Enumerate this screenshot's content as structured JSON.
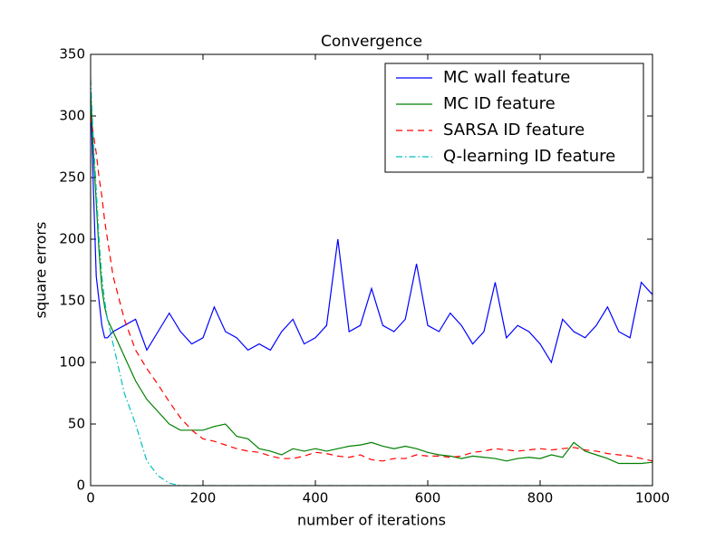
{
  "chart_data": {
    "type": "line",
    "title": "Convergence",
    "x_label": "number of iterations",
    "y_label": "square errors",
    "x": [
      0,
      5,
      10,
      15,
      20,
      25,
      30,
      40,
      60,
      80,
      100,
      120,
      140,
      160,
      180,
      200,
      220,
      240,
      260,
      280,
      300,
      320,
      340,
      360,
      380,
      400,
      420,
      440,
      460,
      480,
      500,
      520,
      540,
      560,
      580,
      600,
      620,
      640,
      660,
      680,
      700,
      720,
      740,
      760,
      780,
      800,
      820,
      840,
      860,
      880,
      900,
      920,
      940,
      960,
      980,
      1000
    ],
    "series": [
      {
        "name": "MC wall feature",
        "color": "#0000ff",
        "linestyle": "solid",
        "values": [
          320,
          240,
          170,
          150,
          130,
          120,
          120,
          125,
          130,
          135,
          110,
          125,
          140,
          125,
          115,
          120,
          145,
          125,
          120,
          110,
          115,
          110,
          125,
          135,
          115,
          120,
          130,
          200,
          125,
          130,
          160,
          130,
          125,
          135,
          180,
          130,
          125,
          140,
          130,
          115,
          125,
          165,
          120,
          130,
          125,
          115,
          100,
          135,
          125,
          120,
          130,
          145,
          125,
          120,
          165,
          155
        ]
      },
      {
        "name": "MC ID feature",
        "color": "#008000",
        "linestyle": "solid",
        "values": [
          320,
          270,
          230,
          190,
          160,
          145,
          135,
          125,
          105,
          85,
          70,
          60,
          50,
          45,
          45,
          45,
          48,
          50,
          40,
          38,
          30,
          28,
          25,
          30,
          28,
          30,
          28,
          30,
          32,
          33,
          35,
          32,
          30,
          32,
          30,
          27,
          25,
          24,
          22,
          24,
          23,
          22,
          20,
          22,
          23,
          22,
          25,
          23,
          35,
          28,
          25,
          22,
          18,
          18,
          18,
          19
        ]
      },
      {
        "name": "SARSA ID feature",
        "color": "#ff0000",
        "linestyle": "dashed",
        "values": [
          300,
          285,
          270,
          250,
          235,
          215,
          200,
          170,
          135,
          110,
          95,
          82,
          68,
          55,
          45,
          38,
          36,
          33,
          30,
          28,
          27,
          24,
          22,
          22,
          24,
          27,
          26,
          24,
          23,
          25,
          21,
          20,
          22,
          22,
          25,
          24,
          24,
          23,
          24,
          27,
          28,
          30,
          29,
          28,
          29,
          30,
          29,
          30,
          31,
          29,
          28,
          26,
          25,
          24,
          22,
          20
        ]
      },
      {
        "name": "Q-learning ID feature",
        "color": "#00bfbf",
        "linestyle": "dashdot",
        "values": [
          330,
          280,
          240,
          200,
          170,
          150,
          135,
          115,
          75,
          50,
          20,
          8,
          2,
          0,
          0,
          0,
          0,
          0,
          0,
          0,
          0,
          0,
          0,
          0,
          0,
          0,
          0,
          0,
          0,
          0,
          0,
          0,
          0,
          0,
          0,
          0,
          0,
          0,
          0,
          0,
          0,
          0,
          0,
          0,
          0,
          0,
          0,
          0,
          0,
          0,
          0,
          0,
          0,
          0,
          0,
          0
        ]
      }
    ],
    "xlim": [
      0,
      1000
    ],
    "xticks": [
      0,
      200,
      400,
      600,
      800,
      1000
    ],
    "ylim": [
      0,
      350
    ],
    "yticks": [
      0,
      50,
      100,
      150,
      200,
      250,
      300,
      350
    ],
    "grid": false,
    "legend": "upper right"
  }
}
